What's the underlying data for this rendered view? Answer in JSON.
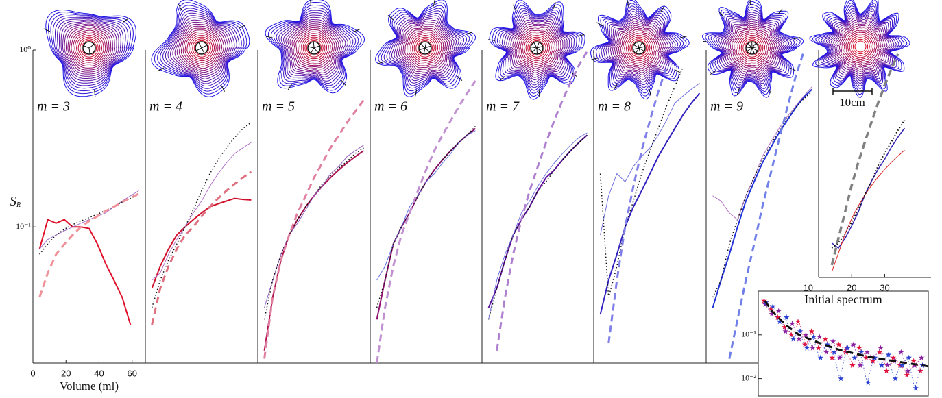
{
  "chart_data": [
    {
      "type": "line",
      "title": "m = 3",
      "title_color": "#e0102a",
      "log_y": true,
      "xlim": [
        0,
        68
      ],
      "ylim": [
        0.017,
        1
      ],
      "xticks": [
        0,
        20,
        40,
        60
      ],
      "yticks": [
        {
          "value": 1,
          "label": "10⁰"
        },
        {
          "value": 0.1,
          "label": "10⁻¹"
        }
      ],
      "xlabel": "Volume (ml)",
      "ylabel": {
        "text": "S",
        "subscript": "R"
      },
      "x": [
        4,
        9,
        14,
        19,
        24,
        29,
        34,
        39,
        44,
        49,
        54,
        59,
        64
      ],
      "series": [
        {
          "color": "#e0102a",
          "style": "solid",
          "width": 2,
          "values": [
            0.075,
            0.11,
            0.105,
            0.11,
            0.1,
            0.1,
            0.098,
            0.08,
            0.062,
            0.05,
            0.04,
            0.028,
            null
          ]
        },
        {
          "color": "#a070c8",
          "style": "solid",
          "width": 1,
          "values": [
            0.075,
            0.085,
            0.09,
            0.095,
            0.1,
            0.105,
            0.11,
            0.115,
            0.12,
            0.13,
            0.14,
            0.15,
            0.16
          ]
        },
        {
          "color": "#111111",
          "style": "dotted",
          "width": 1.5,
          "values": [
            0.07,
            0.08,
            0.09,
            0.097,
            0.103,
            0.108,
            0.113,
            0.118,
            0.124,
            0.13,
            0.138,
            0.145,
            0.152
          ]
        },
        {
          "color": "#f09098",
          "style": "dashed",
          "width": 3,
          "values": [
            0.04,
            0.055,
            0.07,
            0.08,
            0.09,
            0.1,
            0.108,
            0.115,
            0.123,
            0.13,
            0.138,
            0.146,
            0.154
          ]
        }
      ]
    },
    {
      "type": "line",
      "title": "m = 4",
      "title_color": "#d01040",
      "log_y": true,
      "xlim": [
        0,
        68
      ],
      "ylim": [
        0.017,
        1
      ],
      "x": [
        4,
        9,
        14,
        19,
        24,
        29,
        34,
        39,
        44,
        49,
        54,
        59,
        64
      ],
      "series": [
        {
          "color": "#d0102a",
          "style": "solid",
          "width": 2,
          "values": [
            0.045,
            0.06,
            0.075,
            0.09,
            0.1,
            0.11,
            0.12,
            0.13,
            0.135,
            0.14,
            0.145,
            0.143,
            0.142
          ]
        },
        {
          "color": "#b070c8",
          "style": "solid",
          "width": 1,
          "values": [
            0.05,
            0.055,
            0.07,
            0.085,
            0.1,
            0.12,
            0.14,
            0.17,
            0.2,
            0.23,
            0.26,
            0.28,
            0.3
          ]
        },
        {
          "color": "#111111",
          "style": "dotted",
          "width": 1.5,
          "values": [
            0.035,
            0.05,
            0.065,
            0.08,
            0.1,
            0.125,
            0.16,
            0.2,
            0.24,
            0.28,
            0.32,
            0.36,
            0.39
          ]
        },
        {
          "color": "#e07080",
          "style": "dashed",
          "width": 3,
          "values": [
            0.028,
            0.045,
            0.06,
            0.075,
            0.09,
            0.1,
            0.115,
            0.13,
            0.145,
            0.16,
            0.175,
            0.19,
            0.205
          ]
        }
      ]
    },
    {
      "type": "line",
      "title": "m = 5",
      "title_color": "#b01060",
      "log_y": true,
      "xlim": [
        0,
        68
      ],
      "ylim": [
        0.017,
        1
      ],
      "x": [
        4,
        9,
        14,
        19,
        24,
        29,
        34,
        39,
        44,
        49,
        54,
        59,
        64
      ],
      "series": [
        {
          "color": "#b01050",
          "style": "solid",
          "width": 2,
          "values": [
            0.02,
            0.04,
            0.065,
            0.09,
            0.11,
            0.13,
            0.15,
            0.17,
            0.19,
            0.21,
            0.23,
            0.25,
            0.27
          ]
        },
        {
          "color": "#9060c0",
          "style": "solid",
          "width": 1,
          "values": [
            0.035,
            0.05,
            0.07,
            0.09,
            0.105,
            0.125,
            0.15,
            0.17,
            0.2,
            0.22,
            0.25,
            0.27,
            0.29
          ]
        },
        {
          "color": "#111111",
          "style": "dotted",
          "width": 1.5,
          "values": [
            0.03,
            0.05,
            0.07,
            0.09,
            0.11,
            0.13,
            0.15,
            0.175,
            0.195,
            0.215,
            0.235,
            0.26,
            0.28
          ]
        },
        {
          "color": "#e080a0",
          "style": "dashed",
          "width": 3,
          "values": [
            0.018,
            0.04,
            0.065,
            0.09,
            0.12,
            0.15,
            0.19,
            0.23,
            0.28,
            0.33,
            0.39,
            0.45,
            0.52
          ]
        }
      ]
    },
    {
      "type": "line",
      "title": "m = 6",
      "title_color": "#902080",
      "log_y": true,
      "xlim": [
        0,
        68
      ],
      "ylim": [
        0.017,
        1
      ],
      "x": [
        4,
        9,
        14,
        19,
        24,
        29,
        34,
        39,
        44,
        49,
        54,
        59,
        64
      ],
      "series": [
        {
          "color": "#901070",
          "style": "solid",
          "width": 2,
          "values": [
            0.03,
            0.05,
            0.08,
            0.1,
            0.12,
            0.15,
            0.18,
            0.21,
            0.24,
            0.27,
            0.3,
            0.33,
            0.36
          ]
        },
        {
          "color": "#6070e0",
          "style": "solid",
          "width": 1,
          "values": [
            0.05,
            0.06,
            0.08,
            0.1,
            0.13,
            0.15,
            0.18,
            0.2,
            0.23,
            0.26,
            0.3,
            0.33,
            0.35
          ]
        },
        {
          "color": "#111111",
          "style": "dotted",
          "width": 1.5,
          "values": [
            0.035,
            0.05,
            0.08,
            0.1,
            0.12,
            0.15,
            0.18,
            0.21,
            0.24,
            0.27,
            0.3,
            0.33,
            0.37
          ]
        },
        {
          "color": "#c090d0",
          "style": "dashed",
          "width": 3,
          "values": [
            0.017,
            0.035,
            0.06,
            0.09,
            0.12,
            0.16,
            0.21,
            0.27,
            0.33,
            0.4,
            0.48,
            0.57,
            0.67
          ]
        }
      ]
    },
    {
      "type": "line",
      "title": "m = 7",
      "title_color": "#7020a0",
      "log_y": true,
      "xlim": [
        0,
        68
      ],
      "ylim": [
        0.017,
        1
      ],
      "x": [
        4,
        9,
        14,
        19,
        24,
        29,
        34,
        39,
        44,
        49,
        54,
        59,
        64
      ],
      "series": [
        {
          "color": "#6010a0",
          "style": "solid",
          "width": 2,
          "values": [
            0.035,
            0.045,
            0.065,
            0.09,
            0.11,
            0.13,
            0.16,
            0.19,
            0.21,
            0.24,
            0.27,
            0.3,
            0.33
          ]
        },
        {
          "color": "#7070e0",
          "style": "solid",
          "width": 1,
          "values": [
            0.03,
            0.05,
            0.07,
            0.09,
            0.12,
            0.14,
            0.17,
            0.2,
            0.23,
            0.26,
            0.29,
            0.32,
            0.34
          ]
        },
        {
          "color": "#111111",
          "style": "dotted",
          "width": 1.5,
          "values": [
            0.03,
            0.045,
            0.065,
            0.09,
            0.11,
            0.13,
            0.16,
            0.18,
            0.21,
            0.24,
            0.27,
            0.3,
            0.33
          ]
        },
        {
          "color": "#b080d0",
          "style": "dashed",
          "width": 3,
          "values": [
            null,
            0.02,
            0.04,
            0.07,
            0.11,
            0.16,
            0.22,
            0.3,
            0.4,
            0.52,
            0.66,
            0.82,
            0.98
          ]
        }
      ]
    },
    {
      "type": "line",
      "title": "m = 8",
      "title_color": "#5030c0",
      "log_y": true,
      "xlim": [
        0,
        68
      ],
      "ylim": [
        0.017,
        1
      ],
      "x": [
        4,
        9,
        14,
        19,
        24,
        29,
        34,
        39,
        44,
        49,
        54,
        59,
        64
      ],
      "series": [
        {
          "color": "#3020c0",
          "style": "solid",
          "width": 2,
          "values": [
            0.032,
            0.05,
            0.07,
            0.1,
            0.13,
            0.16,
            0.2,
            0.25,
            0.3,
            0.36,
            0.43,
            0.5,
            0.57
          ]
        },
        {
          "color": "#7070e0",
          "style": "solid",
          "width": 1,
          "values": [
            0.09,
            0.15,
            0.2,
            0.18,
            0.22,
            0.25,
            0.28,
            0.33,
            0.4,
            0.5,
            0.55,
            0.6,
            0.65
          ]
        },
        {
          "color": "#111111",
          "style": "dotted",
          "width": 1.5,
          "values": [
            0.2,
            0.04,
            0.06,
            0.1,
            0.14,
            0.2,
            0.27,
            0.36,
            0.48,
            0.62,
            0.8,
            null,
            null
          ]
        },
        {
          "color": "#8080e8",
          "style": "dashed",
          "width": 3,
          "values": [
            null,
            0.022,
            0.05,
            0.1,
            0.17,
            0.27,
            0.4,
            0.58,
            0.8,
            null,
            null,
            null,
            null
          ]
        }
      ]
    },
    {
      "type": "line",
      "title": "m = 9",
      "title_color": "#3040d0",
      "log_y": true,
      "xlim": [
        0,
        68
      ],
      "ylim": [
        0.017,
        1
      ],
      "x": [
        4,
        9,
        14,
        19,
        24,
        29,
        34,
        39,
        44,
        49,
        54,
        59,
        64
      ],
      "series": [
        {
          "color": "#2030d8",
          "style": "solid",
          "width": 2,
          "values": [
            0.035,
            0.05,
            0.07,
            0.1,
            0.14,
            0.18,
            0.23,
            0.28,
            0.34,
            0.4,
            0.47,
            0.54,
            0.6
          ]
        },
        {
          "color": "#b070c0",
          "style": "solid",
          "width": 1,
          "values": [
            0.15,
            0.14,
            0.12,
            0.11,
            0.15,
            0.19,
            0.25,
            0.3,
            0.36,
            0.42,
            0.48,
            0.55,
            0.62
          ]
        },
        {
          "color": "#111111",
          "style": "dotted",
          "width": 1.5,
          "values": [
            0.04,
            0.05,
            0.08,
            0.11,
            0.15,
            0.19,
            0.24,
            0.29,
            0.35,
            0.41,
            0.47,
            0.53,
            0.58
          ]
        },
        {
          "color": "#7080e8",
          "style": "dashed",
          "width": 3,
          "values": [
            null,
            null,
            0.018,
            0.03,
            0.05,
            0.08,
            0.13,
            0.2,
            0.31,
            0.47,
            0.7,
            0.98,
            null
          ]
        }
      ]
    },
    {
      "type": "line",
      "annotation": "10cm",
      "log_y": true,
      "xlim": [
        10,
        44
      ],
      "ylim": [
        0.051,
        1
      ],
      "xticks": [
        10,
        20,
        30
      ],
      "x": [
        14,
        16,
        18,
        20,
        22,
        24,
        26,
        28,
        30,
        32,
        34,
        36
      ],
      "series": [
        {
          "color": "#3020b0",
          "style": "solid",
          "width": 1.5,
          "values": [
            0.08,
            0.075,
            0.085,
            0.1,
            0.12,
            0.15,
            0.18,
            0.21,
            0.24,
            0.28,
            0.32,
            0.36
          ]
        },
        {
          "color": "#e02020",
          "style": "solid",
          "width": 1,
          "values": [
            0.055,
            0.07,
            0.09,
            0.11,
            0.13,
            0.15,
            0.17,
            0.19,
            0.21,
            0.23,
            0.25,
            0.27
          ]
        },
        {
          "color": "#111111",
          "style": "dotted",
          "width": 2,
          "values": [
            0.075,
            0.08,
            0.09,
            0.105,
            0.125,
            0.15,
            0.18,
            0.22,
            0.26,
            0.3,
            0.35,
            0.4
          ]
        },
        {
          "color": "#808080",
          "style": "dashed",
          "width": 3.5,
          "values": [
            0.06,
            0.085,
            0.12,
            0.17,
            0.23,
            0.3,
            0.39,
            0.5,
            0.63,
            0.78,
            0.95,
            null
          ]
        }
      ]
    },
    {
      "type": "scatter",
      "title": "Initial spectrum",
      "log_y": true,
      "xlim": [
        0,
        25
      ],
      "ylim": [
        0.004,
        1
      ],
      "yticks": [
        {
          "value": 0.1,
          "label": "10⁻¹"
        },
        {
          "value": 0.01,
          "label": "10⁻²"
        }
      ],
      "fit": {
        "color": "#111111",
        "x": [
          1,
          2,
          4,
          6,
          9,
          12,
          16,
          20,
          25
        ],
        "values": [
          0.6,
          0.35,
          0.17,
          0.1,
          0.065,
          0.045,
          0.032,
          0.025,
          0.019
        ]
      },
      "series": [
        {
          "color": "#e0103a",
          "x": [
            1,
            2,
            3,
            4,
            5,
            6,
            7,
            8,
            9,
            10,
            11,
            12,
            13,
            14,
            15,
            16,
            17,
            18,
            19,
            20,
            21,
            22,
            23,
            24
          ],
          "values": [
            0.6,
            0.4,
            0.25,
            0.15,
            0.1,
            0.2,
            0.06,
            0.12,
            0.05,
            0.08,
            0.03,
            0.06,
            0.04,
            0.02,
            0.05,
            0.03,
            0.025,
            0.04,
            0.015,
            0.03,
            0.02,
            0.012,
            0.025,
            0.015
          ]
        },
        {
          "color": "#8a20a0",
          "x": [
            1,
            2,
            3,
            4,
            5,
            6,
            7,
            8,
            9,
            10,
            11,
            12,
            13,
            14,
            15,
            16,
            17,
            18,
            19,
            20,
            21,
            22,
            23,
            24
          ],
          "values": [
            0.5,
            0.3,
            0.35,
            0.12,
            0.18,
            0.08,
            0.1,
            0.05,
            0.09,
            0.04,
            0.07,
            0.03,
            0.05,
            0.06,
            0.02,
            0.04,
            0.03,
            0.05,
            0.02,
            0.025,
            0.04,
            0.015,
            0.02,
            0.03
          ]
        },
        {
          "color": "#2a40d0",
          "x": [
            1,
            2,
            3,
            4,
            5,
            6,
            7,
            8,
            9,
            10,
            11,
            12,
            13,
            14,
            15,
            16,
            17,
            18,
            19,
            20,
            21,
            22,
            23,
            24
          ],
          "values": [
            0.55,
            0.45,
            0.2,
            0.25,
            0.08,
            0.12,
            0.05,
            0.09,
            0.03,
            0.06,
            0.04,
            0.01,
            0.05,
            0.03,
            0.04,
            0.008,
            0.03,
            0.02,
            0.035,
            0.01,
            0.02,
            0.03,
            0.006,
            0.02
          ]
        }
      ]
    }
  ]
}
